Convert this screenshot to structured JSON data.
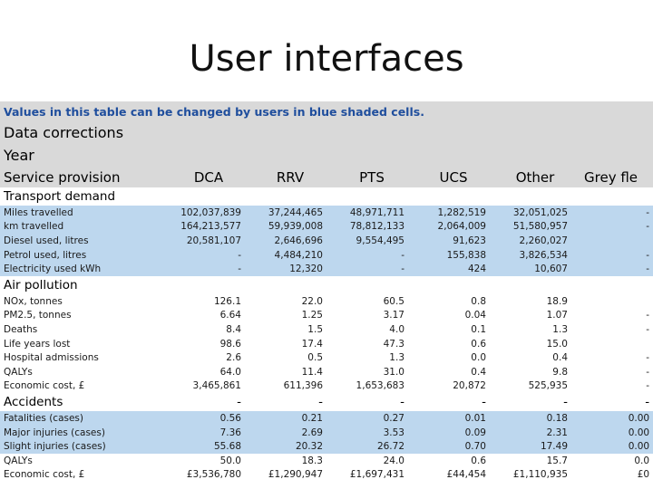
{
  "slide": {
    "title": "User interfaces"
  },
  "sheet": {
    "note": "Values in this table can be changed by users in blue shaded cells.",
    "heading1": "Data corrections",
    "heading2": "Year",
    "columns": [
      "Service provision",
      "DCA",
      "RRV",
      "PTS",
      "UCS",
      "Other",
      "Grey fle"
    ],
    "sections": [
      {
        "title": "Transport demand",
        "shade": "blue",
        "rows": [
          [
            "Miles travelled",
            "102,037,839",
            "37,244,465",
            "48,971,711",
            "1,282,519",
            "32,051,025",
            "-"
          ],
          [
            "km travelled",
            "164,213,577",
            "59,939,008",
            "78,812,133",
            "2,064,009",
            "51,580,957",
            "-"
          ],
          [
            "Diesel used, litres",
            "20,581,107",
            "2,646,696",
            "9,554,495",
            "91,623",
            "2,260,027",
            ""
          ],
          [
            "Petrol used, litres",
            "-",
            "4,484,210",
            "-",
            "155,838",
            "3,826,534",
            "-"
          ],
          [
            "Electricity used kWh",
            "-",
            "12,320",
            "-",
            "424",
            "10,607",
            "-"
          ]
        ]
      },
      {
        "title": "Air pollution",
        "shade": "white",
        "rows": [
          [
            "NOx, tonnes",
            "126.1",
            "22.0",
            "60.5",
            "0.8",
            "18.9",
            ""
          ],
          [
            "PM2.5, tonnes",
            "6.64",
            "1.25",
            "3.17",
            "0.04",
            "1.07",
            "-"
          ],
          [
            "Deaths",
            "8.4",
            "1.5",
            "4.0",
            "0.1",
            "1.3",
            "-"
          ],
          [
            "Life years lost",
            "98.6",
            "17.4",
            "47.3",
            "0.6",
            "15.0",
            ""
          ],
          [
            "Hospital admissions",
            "2.6",
            "0.5",
            "1.3",
            "0.0",
            "0.4",
            "-"
          ],
          [
            "QALYs",
            "64.0",
            "11.4",
            "31.0",
            "0.4",
            "9.8",
            "-"
          ],
          [
            "Economic cost, £",
            "3,465,861",
            "611,396",
            "1,653,683",
            "20,872",
            "525,935",
            "-"
          ]
        ]
      },
      {
        "title": "Accidents",
        "title_values": [
          "-",
          "-",
          "-",
          "-",
          "-",
          "-"
        ],
        "shade": "blue",
        "rows": [
          [
            "Fatalities (cases)",
            "0.56",
            "0.21",
            "0.27",
            "0.01",
            "0.18",
            "0.00"
          ],
          [
            "Major injuries (cases)",
            "7.36",
            "2.69",
            "3.53",
            "0.09",
            "2.31",
            "0.00"
          ],
          [
            "Slight injuries (cases)",
            "55.68",
            "20.32",
            "26.72",
            "0.70",
            "17.49",
            "0.00"
          ]
        ]
      },
      {
        "title": "",
        "shade": "white",
        "rows": [
          [
            "QALYs",
            "50.0",
            "18.3",
            "24.0",
            "0.6",
            "15.7",
            "0.0"
          ],
          [
            "Economic cost, £",
            "£3,536,780",
            "£1,290,947",
            "£1,697,431",
            "£44,454",
            "£1,110,935",
            "£0"
          ]
        ]
      }
    ]
  }
}
